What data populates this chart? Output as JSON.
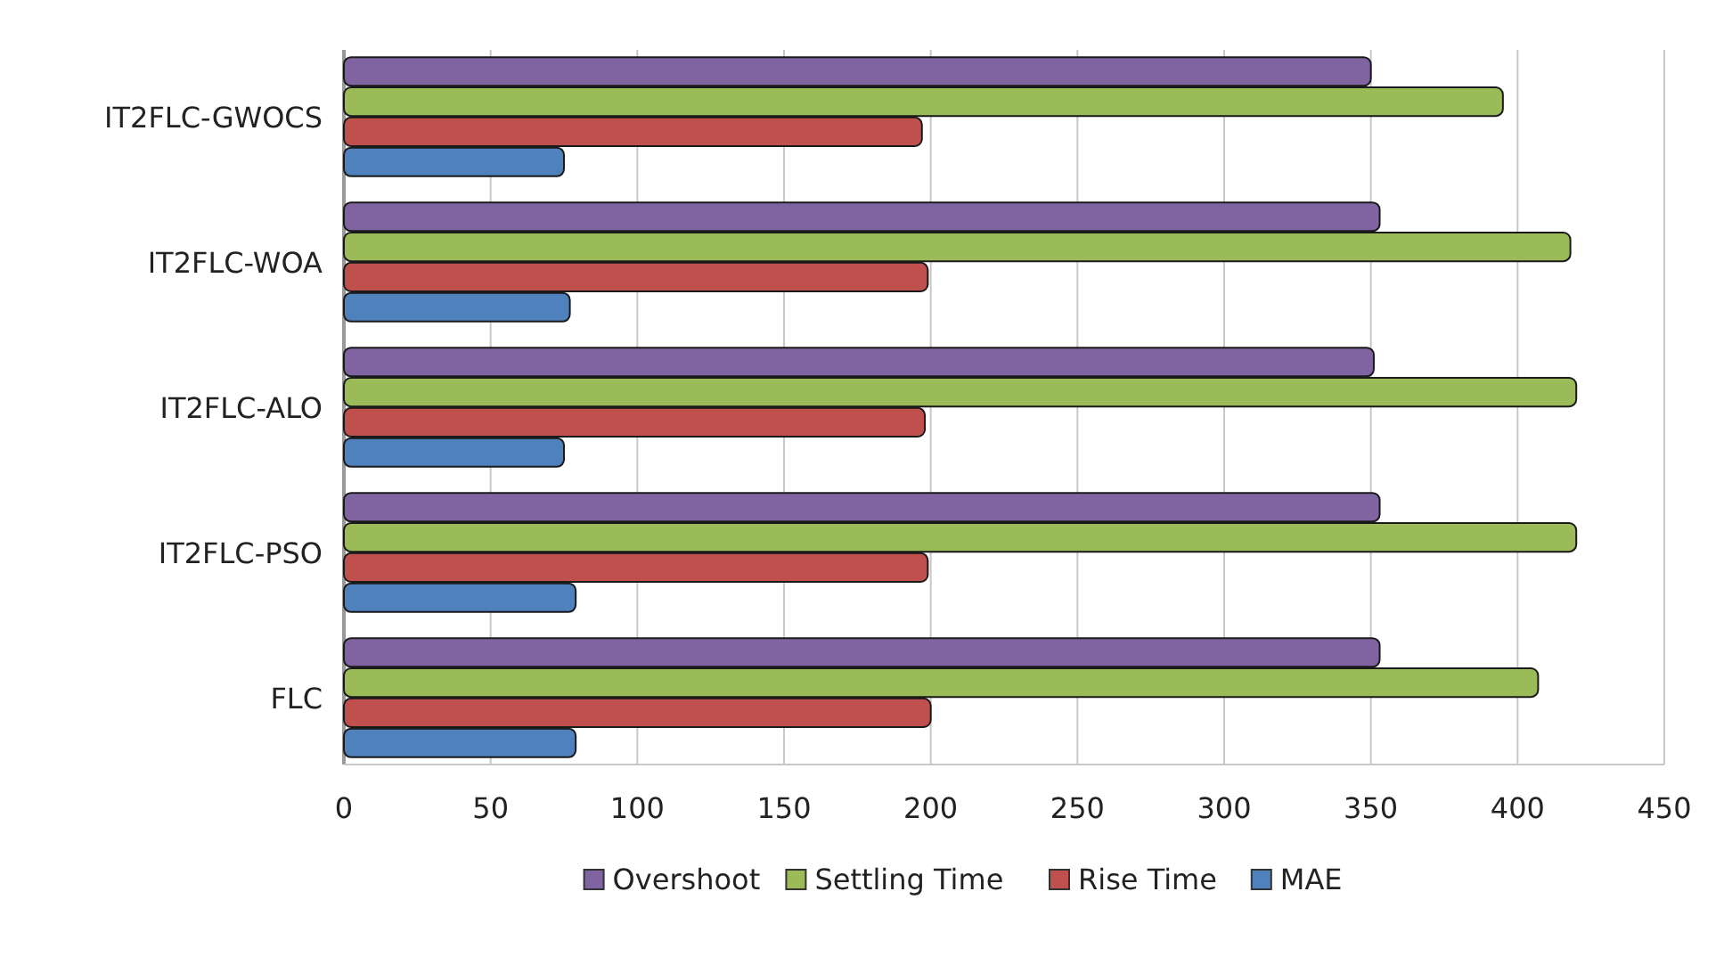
{
  "chart_data": {
    "type": "bar",
    "orientation": "horizontal",
    "categories": [
      "IT2FLC-GWOCS",
      "IT2FLC-WOA",
      "IT2FLC-ALO",
      "IT2FLC-PSO",
      "FLC"
    ],
    "series": [
      {
        "name": "Overshoot",
        "color": "#8064a2",
        "values": [
          350,
          353,
          351,
          353,
          353
        ]
      },
      {
        "name": "Settling Time",
        "color": "#9bbb59",
        "values": [
          395,
          418,
          420,
          420,
          407
        ]
      },
      {
        "name": "Rise Time",
        "color": "#c0504d",
        "values": [
          197,
          199,
          198,
          199,
          200
        ]
      },
      {
        "name": "MAE",
        "color": "#4f81bd",
        "values": [
          75,
          77,
          75,
          79,
          79
        ]
      }
    ],
    "xlim": [
      0,
      450
    ],
    "xticks": [
      0,
      50,
      100,
      150,
      200,
      250,
      300,
      350,
      400,
      450
    ],
    "grid": "x",
    "legend": "bottom"
  }
}
